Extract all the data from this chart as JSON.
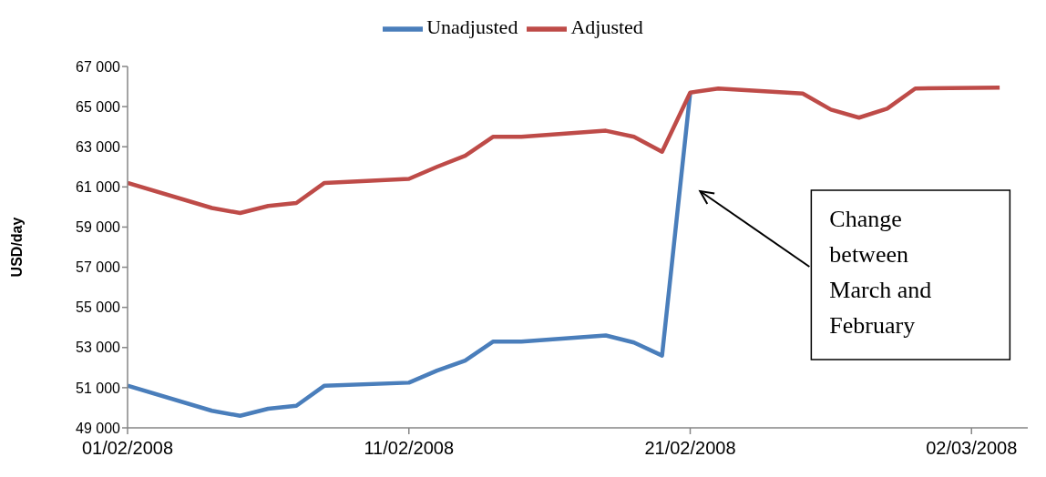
{
  "chart_data": {
    "type": "line",
    "ylabel": "USD/day",
    "x": [
      "2008-02-01",
      "2008-02-04",
      "2008-02-05",
      "2008-02-06",
      "2008-02-07",
      "2008-02-08",
      "2008-02-11",
      "2008-02-12",
      "2008-02-13",
      "2008-02-14",
      "2008-02-15",
      "2008-02-18",
      "2008-02-19",
      "2008-02-20",
      "2008-02-21",
      "2008-02-22",
      "2008-02-25",
      "2008-02-26",
      "2008-02-27",
      "2008-02-28",
      "2008-02-29",
      "2008-03-03"
    ],
    "series": [
      {
        "name": "Unadjusted",
        "color": "#4a7ebb",
        "values": [
          51100,
          49850,
          49600,
          49950,
          50100,
          51100,
          51250,
          51850,
          52350,
          53300,
          53300,
          53600,
          53250,
          52600,
          65700,
          null,
          null,
          null,
          null,
          null,
          null,
          null
        ]
      },
      {
        "name": "Adjusted",
        "color": "#be4b48",
        "values": [
          61200,
          59950,
          59700,
          60050,
          60200,
          61200,
          61400,
          62000,
          62550,
          63500,
          63500,
          63800,
          63500,
          62750,
          65700,
          65900,
          65650,
          64850,
          64450,
          64900,
          65900,
          65950
        ]
      }
    ],
    "xlim": [
      "2008-02-01",
      "2008-03-04"
    ],
    "xticks": [
      {
        "value": "2008-02-01",
        "label": "01/02/2008"
      },
      {
        "value": "2008-02-11",
        "label": "11/02/2008"
      },
      {
        "value": "2008-02-21",
        "label": "21/02/2008"
      },
      {
        "value": "2008-03-02",
        "label": "02/03/2008"
      }
    ],
    "ylim": [
      49000,
      67000
    ],
    "yticks": [
      {
        "value": 49000,
        "label": "49 000"
      },
      {
        "value": 51000,
        "label": "51 000"
      },
      {
        "value": 53000,
        "label": "53 000"
      },
      {
        "value": 55000,
        "label": "55 000"
      },
      {
        "value": 57000,
        "label": "57 000"
      },
      {
        "value": 59000,
        "label": "59 000"
      },
      {
        "value": 61000,
        "label": "61 000"
      },
      {
        "value": 63000,
        "label": "63 000"
      },
      {
        "value": 65000,
        "label": "65 000"
      },
      {
        "value": 67000,
        "label": "67 000"
      }
    ],
    "annotations": [
      "Change between March and February"
    ],
    "grid": false,
    "legend": "top",
    "marker": "none",
    "line_style": "solid"
  }
}
